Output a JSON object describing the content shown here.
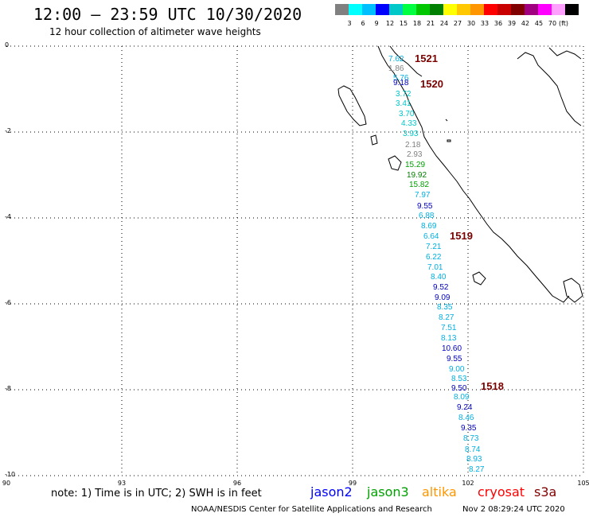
{
  "header": {
    "title": "12:00 — 23:59 UTC 10/30/2020",
    "subtitle": "12 hour collection of altimeter wave heights"
  },
  "legend": {
    "unit": "(ft)",
    "colors": [
      "#808080",
      "#00ffff",
      "#00bfff",
      "#0000ff",
      "#00c8c8",
      "#00ff40",
      "#00c800",
      "#008000",
      "#ffff00",
      "#ffc800",
      "#ff9600",
      "#ff0000",
      "#c80000",
      "#800000",
      "#a00080",
      "#ff00ff",
      "#ffa0ff",
      "#000000"
    ],
    "labels": [
      "3",
      "6",
      "9",
      "12",
      "15",
      "18",
      "21",
      "24",
      "27",
      "30",
      "33",
      "36",
      "39",
      "42",
      "45",
      "70"
    ]
  },
  "axes": {
    "y_labels": [
      "0",
      "-2",
      "-4",
      "-6",
      "-8",
      "-10"
    ],
    "x_labels": [
      "90",
      "93",
      "96",
      "99",
      "102",
      "105"
    ]
  },
  "passes": [
    "1521",
    "1520",
    "1519",
    "1518"
  ],
  "observations": [
    {
      "v": "7.62",
      "c": "#00b0e0"
    },
    {
      "v": "1.86",
      "c": "#808080"
    },
    {
      "v": "5.76",
      "c": "#00b0e0"
    },
    {
      "v": "9.18",
      "c": "#0000c0"
    },
    {
      "v": "3.72",
      "c": "#00c8c8"
    },
    {
      "v": "3.41",
      "c": "#00c8c8"
    },
    {
      "v": "3.70",
      "c": "#00c8c8"
    },
    {
      "v": "4.33",
      "c": "#00c8c8"
    },
    {
      "v": "3.93",
      "c": "#00c8c8"
    },
    {
      "v": "2.18",
      "c": "#808080"
    },
    {
      "v": "2.93",
      "c": "#808080"
    },
    {
      "v": "15.29",
      "c": "#00a000"
    },
    {
      "v": "19.92",
      "c": "#008000"
    },
    {
      "v": "15.82",
      "c": "#00a000"
    },
    {
      "v": "7.97",
      "c": "#00b0e0"
    },
    {
      "v": "9.55",
      "c": "#0000c0"
    },
    {
      "v": "6.88",
      "c": "#00b0e0"
    },
    {
      "v": "8.69",
      "c": "#00b0e0"
    },
    {
      "v": "6.64",
      "c": "#00b0e0"
    },
    {
      "v": "7.21",
      "c": "#00b0e0"
    },
    {
      "v": "6.22",
      "c": "#00b0e0"
    },
    {
      "v": "7.01",
      "c": "#00b0e0"
    },
    {
      "v": "8.40",
      "c": "#00b0e0"
    },
    {
      "v": "9.52",
      "c": "#0000c0"
    },
    {
      "v": "9.09",
      "c": "#0000c0"
    },
    {
      "v": "8.35",
      "c": "#00b0e0"
    },
    {
      "v": "8.27",
      "c": "#00b0e0"
    },
    {
      "v": "7.51",
      "c": "#00b0e0"
    },
    {
      "v": "8.13",
      "c": "#00b0e0"
    },
    {
      "v": "10.60",
      "c": "#0000c0"
    },
    {
      "v": "9.55",
      "c": "#0000c0"
    },
    {
      "v": "9.00",
      "c": "#00b0e0"
    },
    {
      "v": "8.53",
      "c": "#00b0e0"
    },
    {
      "v": "9.50",
      "c": "#0000c0"
    },
    {
      "v": "8.09",
      "c": "#00b0e0"
    },
    {
      "v": "9.24",
      "c": "#0000c0"
    },
    {
      "v": "8.46",
      "c": "#00b0e0"
    },
    {
      "v": "9.35",
      "c": "#0000c0"
    },
    {
      "v": "8.73",
      "c": "#00b0e0"
    },
    {
      "v": "8.74",
      "c": "#00b0e0"
    },
    {
      "v": "8.93",
      "c": "#00b0e0"
    },
    {
      "v": "8.27",
      "c": "#00b0e0"
    }
  ],
  "footer": {
    "note": "note:  1) Time is in UTC;  2) SWH is in feet",
    "satellites": [
      {
        "name": "jason2",
        "color": "#0000ff"
      },
      {
        "name": "jason3",
        "color": "#00a000"
      },
      {
        "name": "altika",
        "color": "#ff9600"
      },
      {
        "name": "cryosat",
        "color": "#ff0000"
      },
      {
        "name": "s3a",
        "color": "#800000"
      }
    ],
    "credit": "NOAA/NESDIS Center for Satellite Applications and Research",
    "timestamp": "Nov  2 08:29:24 UTC 2020"
  }
}
